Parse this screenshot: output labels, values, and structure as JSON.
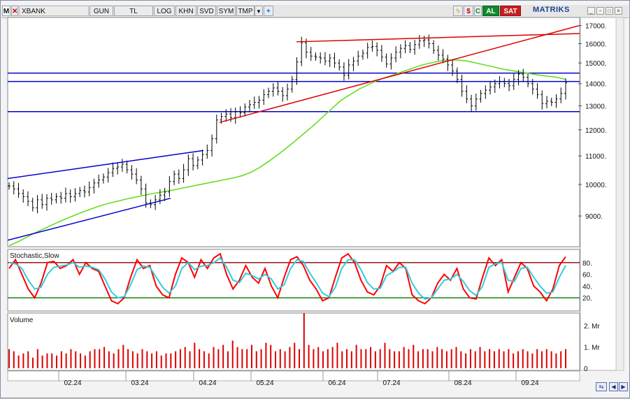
{
  "toolbar": {
    "menu_label": "M",
    "symbol": "XBANK",
    "period": "GUN",
    "currency": "TL",
    "scale": "LOG",
    "b_khn": "KHN",
    "b_svd": "SVD",
    "b_sym": "SYM",
    "b_tmp": "TMP",
    "b_al": "AL",
    "b_sat": "SAT",
    "logo": "MATRIKS",
    "colors": {
      "al": "#118a2a",
      "sat": "#c81e1e"
    }
  },
  "chart_data": [
    {
      "type": "candlestick",
      "scale": "log",
      "ylim": [
        8200,
        17300
      ],
      "yticks": [
        9000,
        10000,
        11000,
        12000,
        13000,
        14000,
        15000,
        16000,
        17000
      ],
      "ytick_labels": [
        "9000.",
        "10000.",
        "11000.",
        "12000.",
        "13000.",
        "14000.",
        "15000.",
        "16000.",
        "17000."
      ],
      "xtick_labels": [
        "02.24",
        "03.24",
        "04.24",
        "05.24",
        "06.24",
        "07.24",
        "08.24",
        "09.24"
      ],
      "close": [
        9950,
        9850,
        9700,
        9600,
        9450,
        9250,
        9500,
        9350,
        9550,
        9500,
        9600,
        9550,
        9700,
        9600,
        9700,
        9800,
        9750,
        9900,
        10050,
        10150,
        10250,
        10400,
        10550,
        10600,
        10700,
        10500,
        10350,
        10150,
        9850,
        9400,
        9350,
        9500,
        9650,
        9750,
        10100,
        10350,
        10200,
        10500,
        10900,
        10650,
        10850,
        11050,
        11200,
        11650,
        12400,
        12550,
        12650,
        12500,
        12750,
        12700,
        12950,
        13050,
        13150,
        13250,
        13500,
        13650,
        13800,
        13650,
        13450,
        13750,
        14200,
        15050,
        16050,
        15550,
        15350,
        15300,
        15250,
        15100,
        15250,
        15000,
        14800,
        14400,
        14900,
        15100,
        15350,
        15500,
        15800,
        15850,
        15650,
        15300,
        14950,
        15250,
        15550,
        15750,
        15900,
        15700,
        15950,
        16150,
        16200,
        16000,
        15650,
        15400,
        15200,
        14900,
        14600,
        14200,
        13650,
        13300,
        13000,
        13300,
        13550,
        13700,
        13850,
        14000,
        14100,
        14000,
        13900,
        14200,
        14450,
        14300,
        14000,
        13750,
        13500,
        13100,
        13200,
        13150,
        13300,
        13550,
        14050
      ],
      "sma": [
        8150,
        8260,
        8390,
        8520,
        8640,
        8760,
        8880,
        8990,
        9100,
        9200,
        9300,
        9380,
        9450,
        9520,
        9580,
        9640,
        9700,
        9750,
        9800,
        9860,
        9920,
        9980,
        10040,
        10100,
        10160,
        10220,
        10300,
        10420,
        10600,
        10820,
        11060,
        11320,
        11600,
        11900,
        12200,
        12550,
        12900,
        13250,
        13500,
        13750,
        13950,
        14150,
        14300,
        14450,
        14600,
        14750,
        14900,
        15000,
        15100,
        15150,
        15150,
        15100,
        15000,
        14900,
        14800,
        14700,
        14620,
        14550,
        14480,
        14400,
        14350,
        14300,
        14200
      ],
      "sma_color": "#66dd22",
      "bar_color": "#000000",
      "hlines": [
        12750,
        14100,
        14500
      ],
      "hline_color": "#0000cc",
      "trendlines": [
        {
          "color": "#0000cc",
          "points": [
            [
              "02.24",
              10200
            ],
            [
              "04.24",
              11200
            ]
          ]
        },
        {
          "color": "#0000cc",
          "points": [
            [
              "02.24",
              8300
            ],
            [
              "03.24",
              9550
            ]
          ]
        },
        {
          "color": "#dd0000",
          "points": [
            [
              "05.24",
              12300
            ],
            [
              "09.24",
              17000
            ]
          ]
        },
        {
          "color": "#dd0000",
          "points": [
            [
              "05.24",
              16100
            ],
            [
              "09.24",
              16550
            ]
          ]
        }
      ]
    },
    {
      "type": "line",
      "title": "Stochastic,Slow",
      "ylim": [
        0,
        100
      ],
      "yticks": [
        20,
        40,
        60,
        80
      ],
      "ytick_labels": [
        "20.",
        "40.",
        "60.",
        "80."
      ],
      "hlines": [
        {
          "y": 80,
          "color": "#8b0000"
        },
        {
          "y": 20,
          "color": "#007700"
        }
      ],
      "series": [
        {
          "color": "#ff0000",
          "values": [
            70,
            85,
            60,
            35,
            20,
            45,
            80,
            82,
            70,
            75,
            85,
            60,
            80,
            70,
            65,
            40,
            15,
            10,
            20,
            55,
            85,
            70,
            75,
            40,
            25,
            20,
            60,
            88,
            80,
            55,
            85,
            70,
            88,
            95,
            60,
            35,
            50,
            75,
            55,
            45,
            70,
            40,
            20,
            55,
            85,
            90,
            75,
            50,
            35,
            15,
            20,
            55,
            88,
            95,
            80,
            50,
            30,
            25,
            40,
            75,
            65,
            80,
            70,
            25,
            15,
            10,
            20,
            45,
            60,
            50,
            70,
            35,
            20,
            18,
            55,
            88,
            75,
            85,
            30,
            55,
            80,
            70,
            40,
            30,
            15,
            35,
            75,
            90
          ]
        },
        {
          "color": "#33ccdd",
          "values": [
            80,
            78,
            70,
            50,
            35,
            38,
            60,
            72,
            74,
            76,
            80,
            72,
            74,
            72,
            68,
            52,
            30,
            20,
            22,
            42,
            68,
            74,
            72,
            55,
            38,
            28,
            40,
            70,
            80,
            68,
            74,
            75,
            80,
            88,
            72,
            50,
            46,
            62,
            58,
            52,
            60,
            52,
            35,
            42,
            70,
            85,
            82,
            62,
            46,
            28,
            22,
            38,
            70,
            85,
            85,
            68,
            46,
            35,
            36,
            58,
            64,
            72,
            72,
            45,
            28,
            18,
            20,
            35,
            50,
            52,
            60,
            48,
            32,
            24,
            40,
            72,
            78,
            80,
            50,
            48,
            70,
            72,
            55,
            40,
            28,
            30,
            55,
            75
          ]
        }
      ]
    },
    {
      "type": "bar",
      "title": "Volume",
      "ylim": [
        0,
        2.5
      ],
      "yticks": [
        0,
        1,
        2
      ],
      "ytick_labels": [
        "0",
        "1. Mr",
        "2. Mr"
      ],
      "bar_color": "#dd0000",
      "values": [
        0.9,
        0.8,
        0.6,
        0.7,
        0.8,
        0.5,
        0.9,
        0.6,
        0.7,
        0.7,
        0.6,
        0.8,
        0.7,
        0.9,
        0.8,
        0.7,
        0.6,
        0.8,
        0.9,
        0.9,
        1.0,
        0.8,
        0.7,
        0.9,
        1.1,
        0.9,
        0.8,
        0.7,
        0.9,
        0.8,
        0.7,
        0.8,
        0.6,
        0.7,
        0.7,
        0.8,
        0.9,
        1.0,
        0.8,
        1.2,
        0.9,
        0.8,
        0.7,
        1.0,
        0.9,
        1.1,
        0.8,
        1.3,
        1.0,
        0.9,
        0.9,
        1.1,
        0.8,
        0.9,
        1.2,
        1.1,
        0.8,
        0.9,
        0.8,
        1.0,
        1.2,
        0.9,
        2.7,
        1.1,
        0.9,
        1.0,
        0.8,
        0.9,
        1.0,
        1.2,
        0.8,
        0.9,
        0.8,
        1.1,
        0.9,
        0.9,
        1.0,
        0.8,
        0.9,
        1.2,
        0.9,
        0.8,
        0.8,
        1.0,
        0.9,
        1.1,
        0.8,
        0.9,
        0.9,
        0.8,
        1.0,
        0.9,
        0.8,
        0.9,
        1.0,
        0.8,
        0.7,
        0.9,
        0.8,
        1.0,
        0.8,
        0.9,
        0.8,
        0.9,
        0.8,
        0.9,
        0.7,
        0.8,
        0.9,
        0.8,
        0.7,
        0.9,
        0.8,
        0.9,
        0.8,
        0.7,
        0.8,
        0.9
      ]
    }
  ]
}
